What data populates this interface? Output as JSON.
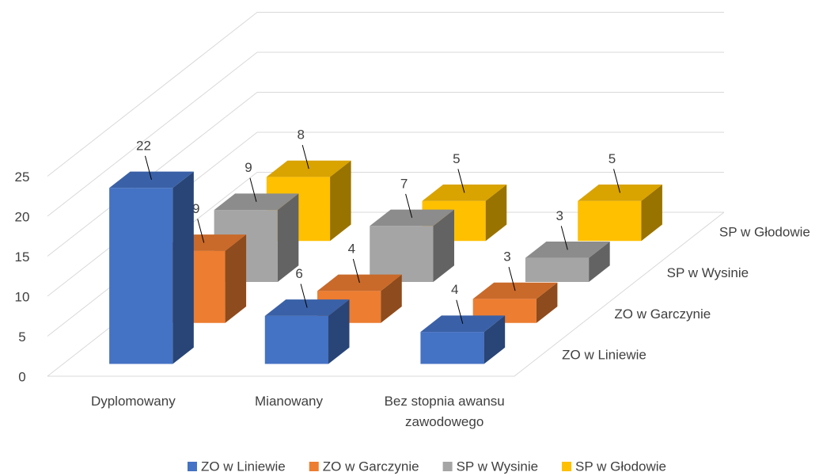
{
  "chart_data": {
    "type": "bar3d",
    "categories": [
      "Dyplomowany",
      "Mianowany",
      "Bez stopnia awansu zawodowego"
    ],
    "series": [
      {
        "name": "ZO w Liniewie",
        "color": "#4472c4",
        "values": [
          22,
          6,
          4
        ]
      },
      {
        "name": "ZO w Garczynie",
        "color": "#ed7d31",
        "values": [
          9,
          4,
          3
        ]
      },
      {
        "name": "SP w Wysinie",
        "color": "#a5a5a5",
        "values": [
          9,
          7,
          3
        ]
      },
      {
        "name": "SP w Głodowie",
        "color": "#ffc000",
        "values": [
          8,
          5,
          5
        ]
      }
    ],
    "ylim": [
      0,
      25
    ],
    "yticks": [
      0,
      5,
      10,
      15,
      20,
      25
    ],
    "grid": true,
    "legend": "bottom"
  }
}
